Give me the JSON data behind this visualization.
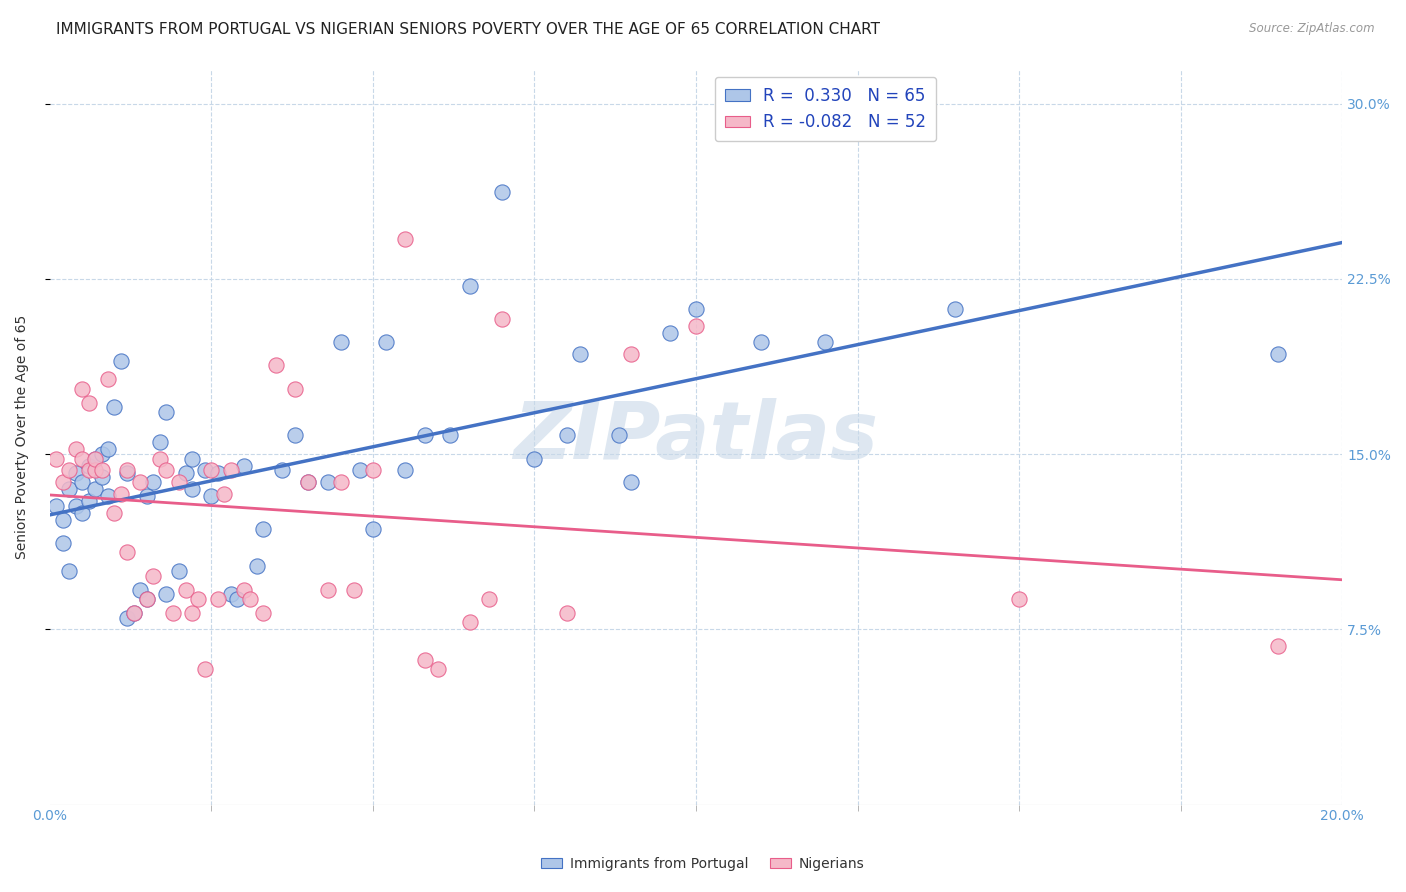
{
  "title": "IMMIGRANTS FROM PORTUGAL VS NIGERIAN SENIORS POVERTY OVER THE AGE OF 65 CORRELATION CHART",
  "source": "Source: ZipAtlas.com",
  "ylabel": "Seniors Poverty Over the Age of 65",
  "xlim": [
    0.0,
    0.2
  ],
  "ylim": [
    0.0,
    0.315
  ],
  "yticks": [
    0.075,
    0.15,
    0.225,
    0.3
  ],
  "ytick_labels": [
    "7.5%",
    "15.0%",
    "22.5%",
    "30.0%"
  ],
  "color_blue": "#aec6e8",
  "color_pink": "#f5b8c8",
  "line_blue": "#4472c4",
  "line_pink": "#e85d8a",
  "watermark": "ZIPatlas",
  "background_color": "#ffffff",
  "grid_color": "#c8d8e8",
  "title_fontsize": 11,
  "axis_label_fontsize": 10,
  "tick_fontsize": 10,
  "portugal_points": [
    [
      0.001,
      0.128
    ],
    [
      0.002,
      0.112
    ],
    [
      0.002,
      0.122
    ],
    [
      0.003,
      0.1
    ],
    [
      0.003,
      0.135
    ],
    [
      0.004,
      0.128
    ],
    [
      0.004,
      0.142
    ],
    [
      0.005,
      0.125
    ],
    [
      0.005,
      0.138
    ],
    [
      0.006,
      0.13
    ],
    [
      0.006,
      0.145
    ],
    [
      0.007,
      0.135
    ],
    [
      0.007,
      0.148
    ],
    [
      0.008,
      0.14
    ],
    [
      0.008,
      0.15
    ],
    [
      0.009,
      0.132
    ],
    [
      0.009,
      0.152
    ],
    [
      0.01,
      0.17
    ],
    [
      0.011,
      0.19
    ],
    [
      0.012,
      0.142
    ],
    [
      0.012,
      0.08
    ],
    [
      0.013,
      0.082
    ],
    [
      0.014,
      0.092
    ],
    [
      0.015,
      0.088
    ],
    [
      0.015,
      0.132
    ],
    [
      0.016,
      0.138
    ],
    [
      0.017,
      0.155
    ],
    [
      0.018,
      0.09
    ],
    [
      0.018,
      0.168
    ],
    [
      0.02,
      0.1
    ],
    [
      0.021,
      0.142
    ],
    [
      0.022,
      0.135
    ],
    [
      0.022,
      0.148
    ],
    [
      0.024,
      0.143
    ],
    [
      0.025,
      0.132
    ],
    [
      0.026,
      0.142
    ],
    [
      0.028,
      0.09
    ],
    [
      0.029,
      0.088
    ],
    [
      0.03,
      0.145
    ],
    [
      0.032,
      0.102
    ],
    [
      0.033,
      0.118
    ],
    [
      0.036,
      0.143
    ],
    [
      0.038,
      0.158
    ],
    [
      0.04,
      0.138
    ],
    [
      0.043,
      0.138
    ],
    [
      0.045,
      0.198
    ],
    [
      0.048,
      0.143
    ],
    [
      0.05,
      0.118
    ],
    [
      0.052,
      0.198
    ],
    [
      0.055,
      0.143
    ],
    [
      0.058,
      0.158
    ],
    [
      0.062,
      0.158
    ],
    [
      0.065,
      0.222
    ],
    [
      0.07,
      0.262
    ],
    [
      0.075,
      0.148
    ],
    [
      0.08,
      0.158
    ],
    [
      0.082,
      0.193
    ],
    [
      0.088,
      0.158
    ],
    [
      0.09,
      0.138
    ],
    [
      0.096,
      0.202
    ],
    [
      0.1,
      0.212
    ],
    [
      0.11,
      0.198
    ],
    [
      0.12,
      0.198
    ],
    [
      0.14,
      0.212
    ],
    [
      0.19,
      0.193
    ]
  ],
  "nigerian_points": [
    [
      0.001,
      0.148
    ],
    [
      0.002,
      0.138
    ],
    [
      0.003,
      0.143
    ],
    [
      0.004,
      0.152
    ],
    [
      0.005,
      0.148
    ],
    [
      0.005,
      0.178
    ],
    [
      0.006,
      0.143
    ],
    [
      0.006,
      0.172
    ],
    [
      0.007,
      0.143
    ],
    [
      0.007,
      0.148
    ],
    [
      0.008,
      0.143
    ],
    [
      0.009,
      0.182
    ],
    [
      0.01,
      0.125
    ],
    [
      0.011,
      0.133
    ],
    [
      0.012,
      0.143
    ],
    [
      0.012,
      0.108
    ],
    [
      0.013,
      0.082
    ],
    [
      0.014,
      0.138
    ],
    [
      0.015,
      0.088
    ],
    [
      0.016,
      0.098
    ],
    [
      0.017,
      0.148
    ],
    [
      0.018,
      0.143
    ],
    [
      0.019,
      0.082
    ],
    [
      0.02,
      0.138
    ],
    [
      0.021,
      0.092
    ],
    [
      0.022,
      0.082
    ],
    [
      0.023,
      0.088
    ],
    [
      0.024,
      0.058
    ],
    [
      0.025,
      0.143
    ],
    [
      0.026,
      0.088
    ],
    [
      0.027,
      0.133
    ],
    [
      0.028,
      0.143
    ],
    [
      0.03,
      0.092
    ],
    [
      0.031,
      0.088
    ],
    [
      0.033,
      0.082
    ],
    [
      0.035,
      0.188
    ],
    [
      0.038,
      0.178
    ],
    [
      0.04,
      0.138
    ],
    [
      0.043,
      0.092
    ],
    [
      0.045,
      0.138
    ],
    [
      0.047,
      0.092
    ],
    [
      0.05,
      0.143
    ],
    [
      0.055,
      0.242
    ],
    [
      0.058,
      0.062
    ],
    [
      0.06,
      0.058
    ],
    [
      0.065,
      0.078
    ],
    [
      0.068,
      0.088
    ],
    [
      0.07,
      0.208
    ],
    [
      0.08,
      0.082
    ],
    [
      0.09,
      0.193
    ],
    [
      0.1,
      0.205
    ],
    [
      0.15,
      0.088
    ],
    [
      0.19,
      0.068
    ]
  ]
}
